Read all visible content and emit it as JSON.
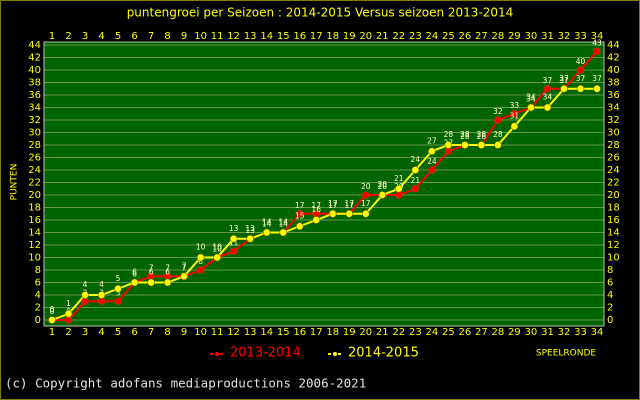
{
  "chart_data": {
    "type": "line",
    "title": "puntengroei per Seizoen : 2014-2015 Versus seizoen 2013-2014",
    "y_label": "PUNTEN",
    "x_label": "SPEELRONDE",
    "footer": "(c) Copyright adofans mediaproductions 2006-2021",
    "categories": [
      1,
      2,
      3,
      4,
      5,
      6,
      7,
      8,
      9,
      10,
      11,
      12,
      13,
      14,
      15,
      16,
      17,
      18,
      19,
      20,
      21,
      22,
      23,
      24,
      25,
      26,
      27,
      28,
      29,
      30,
      31,
      32,
      33,
      34
    ],
    "series": [
      {
        "name": "2013-2014",
        "color": "#ff0000",
        "values": [
          0,
          0,
          3,
          3,
          3,
          6,
          7,
          7,
          7,
          8,
          10,
          11,
          13,
          14,
          14,
          17,
          17,
          17,
          17,
          20,
          20,
          20,
          21,
          24,
          27,
          28,
          28,
          32,
          33,
          34,
          37,
          37,
          40,
          43
        ]
      },
      {
        "name": "2014-2015",
        "color": "#ffff00",
        "values": [
          0,
          1,
          4,
          4,
          5,
          6,
          6,
          6,
          7,
          10,
          10,
          13,
          13,
          14,
          14,
          15,
          16,
          17,
          17,
          17,
          20,
          21,
          24,
          27,
          28,
          28,
          28,
          28,
          31,
          34,
          34,
          37,
          37,
          37
        ]
      }
    ],
    "ylim": [
      0,
      44
    ],
    "yticks": [
      0,
      2,
      4,
      6,
      8,
      10,
      12,
      14,
      16,
      18,
      20,
      22,
      24,
      26,
      28,
      30,
      32,
      34,
      36,
      38,
      40,
      42,
      44
    ],
    "grid": true
  }
}
